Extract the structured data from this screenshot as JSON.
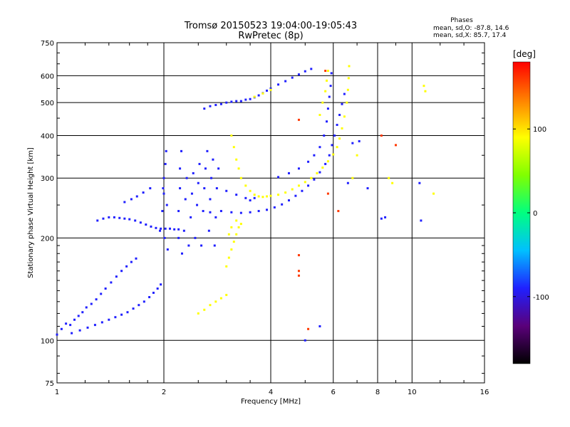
{
  "chart_data": {
    "type": "scatter",
    "title": "Tromsø 20150523 19:04:00-19:05:43",
    "subtitle": "RwPretec (8p)",
    "xlabel": "Frequency [MHz]",
    "ylabel": "Stationary phase Virtual Height [km]",
    "x_scale": "log",
    "y_scale": "log",
    "xlim": [
      1,
      16
    ],
    "ylim": [
      75,
      750
    ],
    "x_ticks": [
      1,
      2,
      4,
      6,
      8,
      10,
      16
    ],
    "y_ticks": [
      75,
      100,
      200,
      300,
      400,
      500,
      600,
      750
    ],
    "x_gridlines": [
      2,
      4,
      6,
      8,
      10
    ],
    "y_gridlines": [
      100,
      200,
      300,
      400,
      500,
      600
    ],
    "legend": {
      "title": "Phases",
      "lines": [
        "mean, sd,O: -87.8, 14.6",
        "mean, sd,X:  85.7, 17.4"
      ],
      "position": "top-right"
    },
    "colorbar": {
      "label": "[deg]",
      "range": [
        -180,
        180
      ],
      "ticks": [
        100,
        0,
        -100
      ],
      "colors": [
        "#000000",
        "#5a007a",
        "#2020ff",
        "#00c0ff",
        "#00ff80",
        "#80ff00",
        "#ffff00",
        "#ff8000",
        "#ff0000"
      ]
    },
    "series": [
      {
        "phase": -90,
        "points": [
          [
            1.0,
            104
          ],
          [
            1.03,
            108
          ],
          [
            1.06,
            112
          ],
          [
            1.09,
            111
          ],
          [
            1.12,
            115
          ],
          [
            1.15,
            118
          ],
          [
            1.18,
            121
          ],
          [
            1.21,
            125
          ],
          [
            1.25,
            128
          ],
          [
            1.29,
            132
          ],
          [
            1.33,
            137
          ],
          [
            1.37,
            142
          ],
          [
            1.42,
            148
          ],
          [
            1.47,
            154
          ],
          [
            1.52,
            160
          ],
          [
            1.57,
            165
          ],
          [
            1.62,
            170
          ],
          [
            1.67,
            174
          ],
          [
            1.1,
            105
          ],
          [
            1.16,
            107
          ],
          [
            1.22,
            109
          ],
          [
            1.28,
            111
          ],
          [
            1.34,
            113
          ],
          [
            1.4,
            115
          ],
          [
            1.46,
            117
          ],
          [
            1.52,
            119
          ],
          [
            1.58,
            121
          ],
          [
            1.64,
            124
          ],
          [
            1.7,
            127
          ],
          [
            1.76,
            130
          ],
          [
            1.82,
            134
          ],
          [
            1.87,
            138
          ],
          [
            1.92,
            142
          ],
          [
            1.96,
            146
          ],
          [
            1.3,
            225
          ],
          [
            1.35,
            228
          ],
          [
            1.4,
            230
          ],
          [
            1.45,
            230
          ],
          [
            1.5,
            229
          ],
          [
            1.55,
            228
          ],
          [
            1.6,
            227
          ],
          [
            1.66,
            225
          ],
          [
            1.72,
            222
          ],
          [
            1.78,
            219
          ],
          [
            1.84,
            216
          ],
          [
            1.9,
            214
          ],
          [
            1.96,
            213
          ],
          [
            2.02,
            213
          ],
          [
            2.08,
            213
          ],
          [
            2.14,
            212
          ],
          [
            2.2,
            212
          ],
          [
            1.55,
            255
          ],
          [
            1.62,
            260
          ],
          [
            1.68,
            265
          ],
          [
            1.75,
            272
          ],
          [
            1.83,
            280
          ],
          [
            1.95,
            210
          ],
          [
            1.98,
            240
          ],
          [
            2.0,
            270
          ],
          [
            2.0,
            300
          ],
          [
            2.02,
            330
          ],
          [
            2.03,
            360
          ],
          [
            2.01,
            200
          ],
          [
            2.05,
            185
          ],
          [
            2.04,
            250
          ],
          [
            1.99,
            280
          ],
          [
            2.2,
            200
          ],
          [
            2.2,
            240
          ],
          [
            2.22,
            280
          ],
          [
            2.22,
            320
          ],
          [
            2.24,
            360
          ],
          [
            2.25,
            180
          ],
          [
            2.28,
            210
          ],
          [
            2.3,
            260
          ],
          [
            2.32,
            300
          ],
          [
            2.35,
            190
          ],
          [
            2.38,
            230
          ],
          [
            2.4,
            270
          ],
          [
            2.42,
            310
          ],
          [
            2.45,
            200
          ],
          [
            2.48,
            250
          ],
          [
            2.5,
            290
          ],
          [
            2.52,
            330
          ],
          [
            2.55,
            190
          ],
          [
            2.58,
            240
          ],
          [
            2.6,
            280
          ],
          [
            2.62,
            320
          ],
          [
            2.65,
            360
          ],
          [
            2.68,
            210
          ],
          [
            2.7,
            260
          ],
          [
            2.72,
            300
          ],
          [
            2.75,
            340
          ],
          [
            2.78,
            190
          ],
          [
            2.8,
            230
          ],
          [
            2.82,
            280
          ],
          [
            2.85,
            320
          ],
          [
            2.6,
            480
          ],
          [
            2.7,
            488
          ],
          [
            2.8,
            492
          ],
          [
            2.9,
            495
          ],
          [
            3.0,
            500
          ],
          [
            3.1,
            503
          ],
          [
            3.2,
            505
          ],
          [
            3.3,
            505
          ],
          [
            3.4,
            510
          ],
          [
            3.5,
            512
          ],
          [
            3.6,
            518
          ],
          [
            3.7,
            525
          ],
          [
            3.8,
            533
          ],
          [
            3.9,
            542
          ],
          [
            4.0,
            550
          ],
          [
            4.2,
            565
          ],
          [
            4.4,
            578
          ],
          [
            4.6,
            592
          ],
          [
            4.8,
            605
          ],
          [
            5.0,
            618
          ],
          [
            5.2,
            628
          ],
          [
            2.7,
            238
          ],
          [
            2.9,
            240
          ],
          [
            3.1,
            238
          ],
          [
            3.3,
            237
          ],
          [
            3.5,
            238
          ],
          [
            3.7,
            240
          ],
          [
            3.9,
            242
          ],
          [
            4.1,
            246
          ],
          [
            4.3,
            251
          ],
          [
            4.5,
            258
          ],
          [
            4.7,
            266
          ],
          [
            4.9,
            275
          ],
          [
            5.1,
            285
          ],
          [
            5.3,
            297
          ],
          [
            5.5,
            312
          ],
          [
            5.7,
            330
          ],
          [
            5.85,
            350
          ],
          [
            5.95,
            375
          ],
          [
            6.05,
            400
          ],
          [
            6.15,
            430
          ],
          [
            6.25,
            460
          ],
          [
            6.35,
            495
          ],
          [
            6.45,
            530
          ],
          [
            4.2,
            302
          ],
          [
            4.5,
            310
          ],
          [
            4.8,
            320
          ],
          [
            5.1,
            335
          ],
          [
            5.3,
            350
          ],
          [
            5.5,
            370
          ],
          [
            5.65,
            400
          ],
          [
            5.75,
            440
          ],
          [
            5.8,
            480
          ],
          [
            5.85,
            520
          ],
          [
            5.9,
            560
          ],
          [
            5.93,
            610
          ],
          [
            3.0,
            275
          ],
          [
            3.2,
            268
          ],
          [
            3.4,
            262
          ],
          [
            3.5,
            258
          ],
          [
            3.6,
            262
          ],
          [
            5.0,
            100
          ],
          [
            5.5,
            110
          ],
          [
            6.6,
            290
          ],
          [
            6.8,
            380
          ],
          [
            7.1,
            385
          ],
          [
            7.5,
            280
          ],
          [
            8.2,
            228
          ],
          [
            8.4,
            230
          ],
          [
            10.5,
            290
          ],
          [
            10.6,
            225
          ]
        ]
      },
      {
        "phase": 90,
        "points": [
          [
            2.5,
            120
          ],
          [
            2.6,
            123
          ],
          [
            2.7,
            127
          ],
          [
            2.8,
            130
          ],
          [
            2.9,
            133
          ],
          [
            3.0,
            136
          ],
          [
            3.0,
            165
          ],
          [
            3.05,
            175
          ],
          [
            3.1,
            185
          ],
          [
            3.15,
            195
          ],
          [
            3.2,
            205
          ],
          [
            3.25,
            215
          ],
          [
            3.3,
            220
          ],
          [
            3.2,
            225
          ],
          [
            3.1,
            215
          ],
          [
            3.05,
            205
          ],
          [
            3.1,
            400
          ],
          [
            3.15,
            370
          ],
          [
            3.2,
            340
          ],
          [
            3.25,
            320
          ],
          [
            3.3,
            300
          ],
          [
            3.4,
            285
          ],
          [
            3.5,
            275
          ],
          [
            3.6,
            268
          ],
          [
            3.7,
            265
          ],
          [
            3.8,
            264
          ],
          [
            3.9,
            265
          ],
          [
            4.0,
            266
          ],
          [
            4.2,
            268
          ],
          [
            4.4,
            272
          ],
          [
            4.6,
            278
          ],
          [
            4.8,
            285
          ],
          [
            5.0,
            292
          ],
          [
            5.2,
            300
          ],
          [
            5.4,
            310
          ],
          [
            5.6,
            322
          ],
          [
            5.8,
            336
          ],
          [
            6.0,
            352
          ],
          [
            6.15,
            370
          ],
          [
            6.25,
            392
          ],
          [
            6.35,
            420
          ],
          [
            6.45,
            455
          ],
          [
            6.55,
            500
          ],
          [
            6.6,
            545
          ],
          [
            6.63,
            590
          ],
          [
            6.65,
            640
          ],
          [
            5.5,
            460
          ],
          [
            5.6,
            500
          ],
          [
            5.7,
            540
          ],
          [
            5.75,
            580
          ],
          [
            5.8,
            620
          ],
          [
            4.0,
            545
          ],
          [
            3.8,
            532
          ],
          [
            3.6,
            520
          ],
          [
            6.8,
            300
          ],
          [
            7.0,
            350
          ],
          [
            8.6,
            300
          ],
          [
            8.8,
            290
          ],
          [
            10.8,
            560
          ],
          [
            10.9,
            540
          ],
          [
            11.5,
            270
          ]
        ]
      },
      {
        "phase": 160,
        "points": [
          [
            4.8,
            445
          ],
          [
            4.8,
            160
          ],
          [
            4.8,
            155
          ],
          [
            4.8,
            178
          ],
          [
            5.1,
            108
          ],
          [
            5.7,
            620
          ],
          [
            5.8,
            270
          ],
          [
            6.2,
            240
          ],
          [
            8.2,
            400
          ],
          [
            9.0,
            375
          ]
        ]
      }
    ]
  }
}
